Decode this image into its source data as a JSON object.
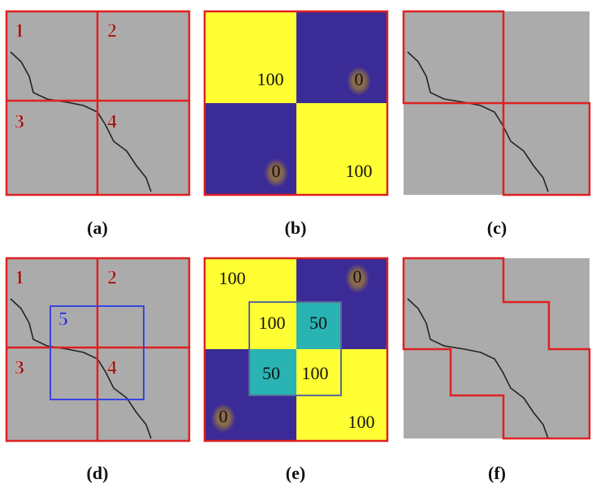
{
  "panels": [
    {
      "caption": "(a)",
      "labels": [
        "1",
        "2",
        "3",
        "4"
      ]
    },
    {
      "caption": "(b)",
      "labels": [
        "100",
        "0",
        "0",
        "100"
      ]
    },
    {
      "caption": "(c)"
    },
    {
      "caption": "(d)",
      "labels": [
        "1",
        "2",
        "3",
        "4",
        "5"
      ]
    },
    {
      "caption": "(e)",
      "labels": [
        "100",
        "0",
        "100",
        "50",
        "50",
        "100",
        "0",
        "100"
      ]
    },
    {
      "caption": "(f)"
    }
  ]
}
